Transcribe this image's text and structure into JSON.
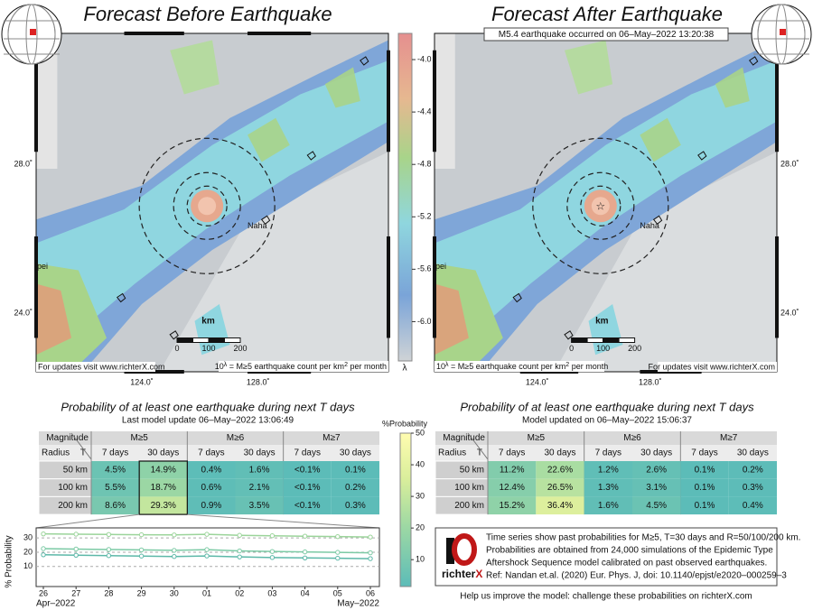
{
  "left_panel": {
    "title": "Forecast Before Earthquake",
    "map": {
      "lat_ticks": [
        "28.0˚",
        "24.0˚"
      ],
      "lon_ticks": [
        "124.0˚",
        "128.0˚"
      ],
      "place": "Naha",
      "city": "pei",
      "scale_unit": "km",
      "scale_ticks": [
        "0",
        "100",
        "200"
      ],
      "note_url": "For updates visit www.richterX.com",
      "note_units": [
        "10",
        "λ",
        " = M≥5 earthquake count per km",
        "2",
        " per month"
      ]
    },
    "subtitle": "Probability of at least one earthquake during next T days",
    "update": "Last model update 06–May–2022 13:06:49",
    "table": {
      "magnitude_label": "Magnitude",
      "radius_label": "Radius",
      "t_label": "T",
      "magnitudes": [
        "M≥5",
        "M≥6",
        "M≥7"
      ],
      "durations": [
        "7 days",
        "30 days",
        "7 days",
        "30 days",
        "7 days",
        "30 days"
      ],
      "rows": [
        {
          "radius": "50 km",
          "cells": [
            "4.5%",
            "14.9%",
            "0.4%",
            "1.6%",
            "<0.1%",
            "0.1%"
          ]
        },
        {
          "radius": "100 km",
          "cells": [
            "5.5%",
            "18.7%",
            "0.6%",
            "2.1%",
            "<0.1%",
            "0.2%"
          ]
        },
        {
          "radius": "200 km",
          "cells": [
            "8.6%",
            "29.3%",
            "0.9%",
            "3.5%",
            "<0.1%",
            "0.3%"
          ]
        }
      ]
    }
  },
  "right_panel": {
    "title": "Forecast After Earthquake",
    "annotation": "M5.4 earthquake occurred on 06–May–2022 13:20:38",
    "map": {
      "lat_ticks": [
        "28.0˚",
        "24.0˚"
      ],
      "lon_ticks": [
        "124.0˚",
        "128.0˚"
      ],
      "place": "Naha",
      "city": "pei",
      "scale_unit": "km",
      "scale_ticks": [
        "0",
        "100",
        "200"
      ],
      "note_url": "For updates visit www.richterX.com",
      "note_units": [
        "10",
        "λ",
        " = M≥5 earthquake count per km",
        "2",
        " per month"
      ]
    },
    "subtitle": "Probability of at least one earthquake during next T days",
    "update": "Model updated on 06–May–2022 15:06:37",
    "table": {
      "magnitude_label": "Magnitude",
      "radius_label": "Radius",
      "t_label": "T",
      "magnitudes": [
        "M≥5",
        "M≥6",
        "M≥7"
      ],
      "durations": [
        "7 days",
        "30 days",
        "7 days",
        "30 days",
        "7 days",
        "30 days"
      ],
      "rows": [
        {
          "radius": "50 km",
          "cells": [
            "11.2%",
            "22.6%",
            "1.2%",
            "2.6%",
            "0.1%",
            "0.2%"
          ]
        },
        {
          "radius": "100 km",
          "cells": [
            "12.4%",
            "26.5%",
            "1.3%",
            "3.1%",
            "0.1%",
            "0.3%"
          ]
        },
        {
          "radius": "200 km",
          "cells": [
            "15.2%",
            "36.4%",
            "1.6%",
            "4.5%",
            "0.1%",
            "0.4%"
          ]
        }
      ]
    }
  },
  "lambda_colorbar": {
    "label": "λ",
    "range": [
      -3.8,
      -6.3
    ],
    "ticks": [
      {
        "value": -4,
        "label": "-4.0"
      },
      {
        "value": -4.4,
        "label": "-4.4"
      },
      {
        "value": -4.8,
        "label": "-4.8"
      },
      {
        "value": -5.2,
        "label": "-5.2"
      },
      {
        "value": -5.6,
        "label": "-5.6"
      },
      {
        "value": -6,
        "label": "-6.0"
      }
    ]
  },
  "probability_colorbar": {
    "label": "%Probability",
    "range": [
      1.5,
      50
    ],
    "ticks": [
      10,
      20,
      30,
      40,
      50
    ]
  },
  "chart_data": {
    "type": "line",
    "ylabel": "% Probability",
    "categories": [
      "26",
      "27",
      "28",
      "29",
      "30",
      "01",
      "02",
      "03",
      "04",
      "05",
      "06"
    ],
    "month_labels": [
      "Apr–2022",
      "May–2022"
    ],
    "ylim": [
      -4,
      37
    ],
    "yticks": [
      10,
      20,
      30
    ],
    "grid": true,
    "series": [
      {
        "color": "#9bd49a",
        "values": [
          32.8,
          32.6,
          32.4,
          32.2,
          32.1,
          32.5,
          31.8,
          31.5,
          31.2,
          30.9,
          30.6
        ]
      },
      {
        "color": "#7ccaa5",
        "values": [
          22.5,
          22.2,
          21.9,
          21.6,
          21.3,
          21.8,
          20.9,
          20.5,
          20.2,
          19.9,
          19.6
        ]
      },
      {
        "color": "#5cb8a8",
        "values": [
          18.2,
          17.9,
          17.6,
          17.3,
          17.0,
          17.4,
          16.7,
          16.3,
          16.0,
          15.8,
          15.5
        ]
      }
    ]
  },
  "footer": {
    "logo": [
      "richter",
      "X"
    ],
    "lines": [
      "Time series show past probabilities for M≥5, T=30 days and R=50/100/200 km.",
      "Probabilities are obtained from 24,000 simulations of the Epidemic Type",
      "Aftershock Sequence model calibrated on past observed earthquakes.",
      "Ref: Nandan et.al. (2020) Eur. Phys. J, doi: 10.1140/epjst/e2020–000259–3"
    ],
    "help": "Help us improve the model: challenge these probabilities on richterX.com"
  }
}
